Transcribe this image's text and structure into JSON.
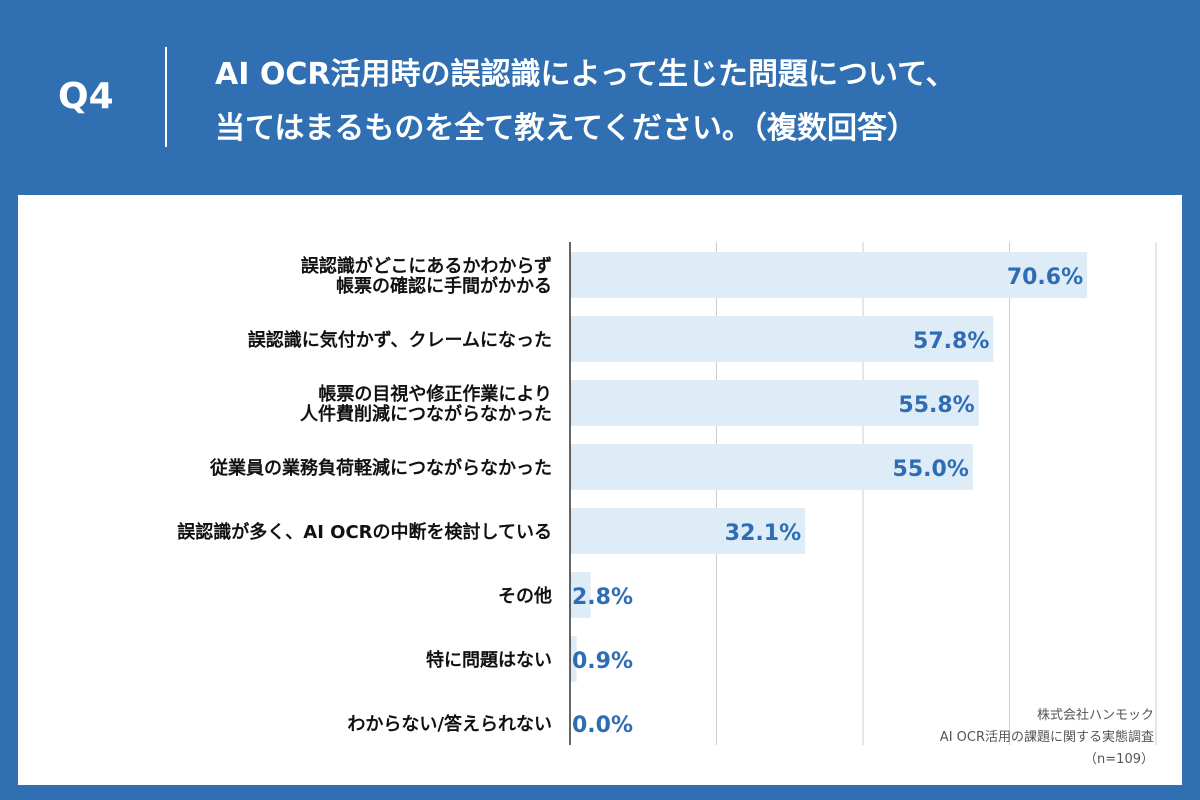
{
  "header": {
    "q_label": "Q4",
    "title_line1": "AI OCR活用時の誤認識によって生じた問題について、",
    "title_line2": "当てはまるものを全て教えてください。（複数回答）"
  },
  "colors": {
    "background": "#2f6fb2",
    "bar_fill": "#deecf8",
    "value_label": "#2e6db4",
    "grid": "#cccccc",
    "axis": "#333333"
  },
  "chart_data": {
    "type": "bar",
    "orientation": "horizontal",
    "categories": [
      [
        "誤認識がどこにあるかわからず",
        "帳票の確認に手間がかかる"
      ],
      [
        "誤認識に気付かず、クレームになった"
      ],
      [
        "帳票の目視や修正作業により",
        "人件費削減につながらなかった"
      ],
      [
        "従業員の業務負荷軽減につながらなかった"
      ],
      [
        "誤認識が多く、AI OCRの中断を検討している"
      ],
      [
        "その他"
      ],
      [
        "特に問題はない"
      ],
      [
        "わからない/答えられない"
      ]
    ],
    "values": [
      70.6,
      57.8,
      55.8,
      55.0,
      32.1,
      2.8,
      0.9,
      0.0
    ],
    "value_labels": [
      "70.6%",
      "57.8%",
      "55.8%",
      "55.0%",
      "32.1%",
      "2.8%",
      "0.9%",
      "0.0%"
    ],
    "xlim": [
      0,
      80
    ],
    "grid": true
  },
  "source": {
    "line1": "株式会社ハンモック",
    "line2": "AI OCR活用の課題に関する実態調査",
    "line3": "（n=109）"
  }
}
